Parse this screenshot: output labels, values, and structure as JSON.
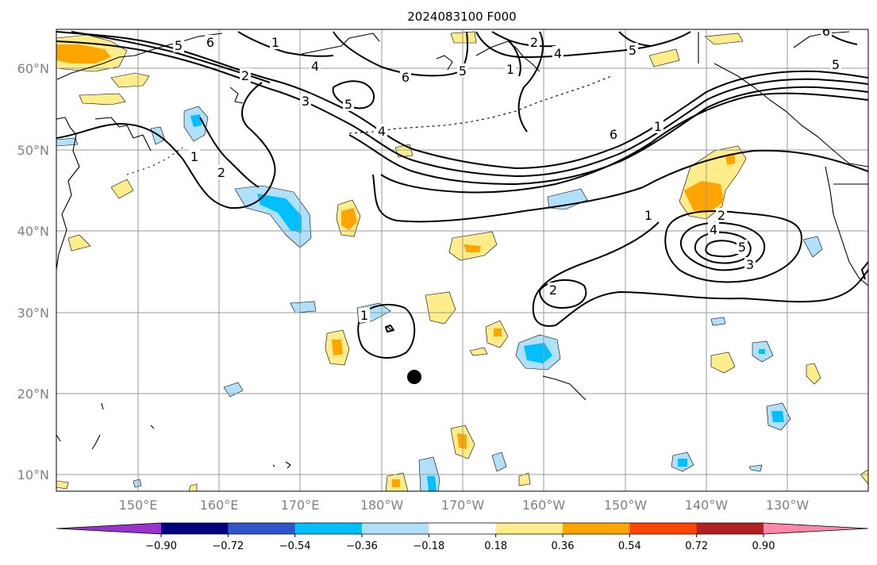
{
  "title": "2024083100 F000",
  "lat_labels": [
    "60°N",
    "50°N",
    "40°N",
    "30°N",
    "20°N",
    "10°N"
  ],
  "lon_labels": [
    "150°E",
    "160°E",
    "170°E",
    "180°W",
    "170°W",
    "160°W",
    "150°W",
    "140°W",
    "130°W"
  ],
  "colorbar": {
    "ticks": [
      "−0.90",
      "−0.72",
      "−0.54",
      "−0.36",
      "−0.18",
      "0.18",
      "0.36",
      "0.54",
      "0.72",
      "0.90"
    ],
    "colors": [
      "#9933cc",
      "#000080",
      "#3355cc",
      "#00bfff",
      "#b0e0fa",
      "#ffffff",
      "#ffec8b",
      "#ffa500",
      "#ff4500",
      "#b22222",
      "#ff88aa"
    ]
  },
  "contour_labels": {
    "c_1a": "1",
    "c_1b": "1",
    "c_1c": "1",
    "c_1d": "1",
    "c_1e": "1",
    "c_2a": "2",
    "c_2b": "2",
    "c_2c": "2",
    "c_2d": "2",
    "c_3a": "3",
    "c_3b": "3",
    "c_4a": "4",
    "c_4b": "4",
    "c_4c": "4",
    "c_4d": "4",
    "c_5a": "5",
    "c_5b": "5",
    "c_5c": "5",
    "c_5d": "5",
    "c_5e": "5",
    "c_6a": "6",
    "c_6b": "6",
    "c_6c": "6",
    "c_6d": "6"
  },
  "marker": "storm-position-dot"
}
